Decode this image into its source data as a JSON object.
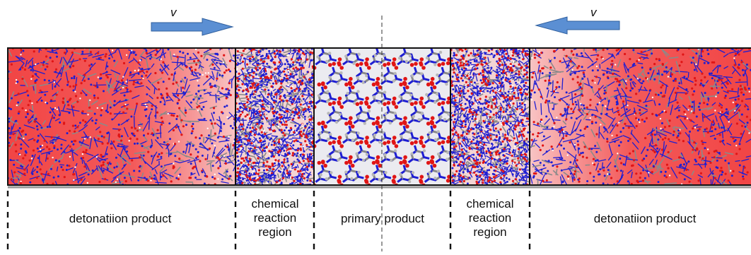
{
  "velocity": {
    "left_label": "v",
    "right_label": "v"
  },
  "regions": [
    {
      "id": "left-product",
      "label": "detonatiion product"
    },
    {
      "id": "left-reaction",
      "label_lines": [
        "chemical",
        "reaction",
        "region"
      ]
    },
    {
      "id": "primary",
      "label": "primary product"
    },
    {
      "id": "right-reaction",
      "label_lines": [
        "chemical",
        "reaction",
        "region"
      ]
    },
    {
      "id": "right-product",
      "label": "detonatiion product"
    }
  ],
  "colors": {
    "product_red": "#f24b4b",
    "product_light": "#f7c6c6",
    "arrow_blue": "#5b8fd3",
    "atom_blue": "#1e1ed2",
    "atom_red": "#e01515",
    "atom_gray": "#8a8a8a",
    "primary_bg": "#e9e9ee"
  }
}
